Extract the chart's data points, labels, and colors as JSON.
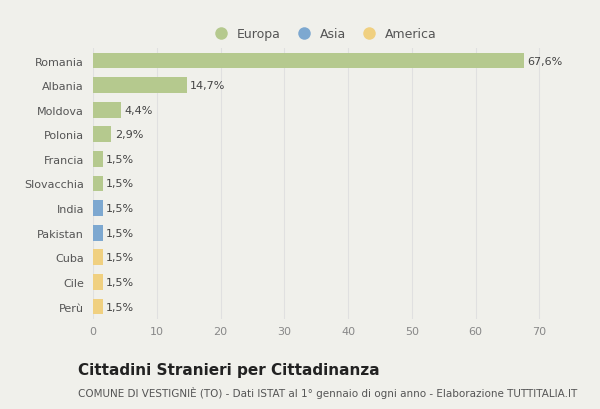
{
  "countries": [
    "Romania",
    "Albania",
    "Moldova",
    "Polonia",
    "Francia",
    "Slovacchia",
    "India",
    "Pakistan",
    "Cuba",
    "Cile",
    "Perù"
  ],
  "values": [
    67.6,
    14.7,
    4.4,
    2.9,
    1.5,
    1.5,
    1.5,
    1.5,
    1.5,
    1.5,
    1.5
  ],
  "labels": [
    "67,6%",
    "14,7%",
    "4,4%",
    "2,9%",
    "1,5%",
    "1,5%",
    "1,5%",
    "1,5%",
    "1,5%",
    "1,5%",
    "1,5%"
  ],
  "colors": [
    "#b5c98e",
    "#b5c98e",
    "#b5c98e",
    "#b5c98e",
    "#b5c98e",
    "#b5c98e",
    "#7da8d0",
    "#7da8d0",
    "#f0d080",
    "#f0d080",
    "#f0d080"
  ],
  "legend_labels": [
    "Europa",
    "Asia",
    "America"
  ],
  "legend_colors": [
    "#b5c98e",
    "#7da8d0",
    "#f0d080"
  ],
  "title": "Cittadini Stranieri per Cittadinanza",
  "subtitle": "COMUNE DI VESTIGNIÈ (TO) - Dati ISTAT al 1° gennaio di ogni anno - Elaborazione TUTTITALIA.IT",
  "xlim": [
    0,
    72
  ],
  "xticks": [
    0,
    10,
    20,
    30,
    40,
    50,
    60,
    70
  ],
  "background_color": "#f0f0eb",
  "grid_color": "#e0e0e0",
  "bar_height": 0.65,
  "title_fontsize": 11,
  "subtitle_fontsize": 7.5,
  "label_fontsize": 8,
  "tick_fontsize": 8,
  "legend_fontsize": 9
}
